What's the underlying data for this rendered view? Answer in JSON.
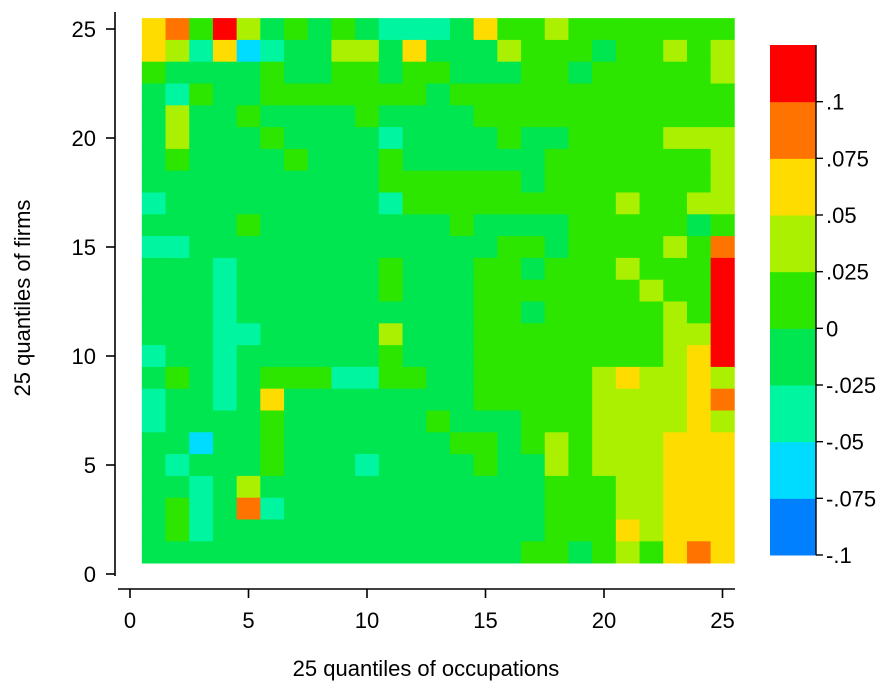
{
  "chart_data": {
    "type": "heatmap",
    "xlabel": "25 quantiles of occupations",
    "ylabel": "25 quantiles of firms",
    "xlim": [
      0,
      25
    ],
    "ylim": [
      0,
      25
    ],
    "x_ticks": [
      0,
      5,
      10,
      15,
      20,
      25
    ],
    "y_ticks": [
      0,
      5,
      10,
      15,
      20,
      25
    ],
    "grid": false,
    "colorbar": {
      "placement": "right",
      "bins": [
        {
          "from": -0.1,
          "to": -0.075,
          "color": "#0080ff"
        },
        {
          "from": -0.075,
          "to": -0.05,
          "color": "#00dcff"
        },
        {
          "from": -0.05,
          "to": -0.025,
          "color": "#00f5a0"
        },
        {
          "from": -0.025,
          "to": 0,
          "color": "#00e650"
        },
        {
          "from": 0,
          "to": 0.025,
          "color": "#2de600"
        },
        {
          "from": 0.025,
          "to": 0.05,
          "color": "#aaf000"
        },
        {
          "from": 0.05,
          "to": 0.075,
          "color": "#ffdc00"
        },
        {
          "from": 0.075,
          "to": 0.1,
          "color": "#ff7300"
        },
        {
          "from": 0.1,
          "to": 0.125,
          "color": "#ff0000"
        }
      ],
      "tick_labels": [
        {
          "value": -0.1,
          "label": "-.1"
        },
        {
          "value": -0.075,
          "label": "-.075"
        },
        {
          "value": -0.05,
          "label": "-.05"
        },
        {
          "value": -0.025,
          "label": "-.025"
        },
        {
          "value": 0,
          "label": "0"
        },
        {
          "value": 0.025,
          "label": ".025"
        },
        {
          "value": 0.05,
          "label": ".05"
        },
        {
          "value": 0.075,
          "label": ".075"
        },
        {
          "value": 0.1,
          "label": ".1"
        }
      ]
    },
    "rows_note_order": "rows listed from firm quantile 25 (top) down to 1 (bottom); each row lists occupation quantiles 1..25 as colorbar bin indices 0..8",
    "matrix_bins": [
      [
        6,
        7,
        4,
        8,
        5,
        3,
        4,
        3,
        4,
        3,
        2,
        2,
        2,
        3,
        6,
        4,
        4,
        5,
        4,
        4,
        4,
        4,
        4,
        4,
        4
      ],
      [
        6,
        5,
        2,
        6,
        1,
        2,
        3,
        3,
        5,
        5,
        3,
        6,
        3,
        3,
        3,
        5,
        4,
        4,
        4,
        3,
        4,
        4,
        5,
        4,
        5
      ],
      [
        4,
        3,
        3,
        3,
        3,
        4,
        3,
        3,
        4,
        4,
        3,
        4,
        4,
        3,
        3,
        3,
        4,
        4,
        3,
        4,
        4,
        4,
        4,
        4,
        5
      ],
      [
        3,
        2,
        4,
        3,
        3,
        4,
        4,
        4,
        4,
        4,
        4,
        4,
        3,
        4,
        4,
        4,
        4,
        4,
        4,
        4,
        4,
        4,
        4,
        4,
        4
      ],
      [
        3,
        5,
        3,
        3,
        4,
        3,
        3,
        3,
        3,
        4,
        3,
        3,
        3,
        3,
        4,
        4,
        4,
        4,
        4,
        4,
        4,
        4,
        4,
        4,
        4
      ],
      [
        3,
        5,
        3,
        3,
        3,
        4,
        3,
        3,
        3,
        3,
        2,
        3,
        3,
        3,
        3,
        4,
        3,
        3,
        4,
        4,
        4,
        4,
        5,
        5,
        5
      ],
      [
        3,
        4,
        3,
        3,
        3,
        3,
        4,
        3,
        3,
        3,
        4,
        3,
        3,
        3,
        3,
        3,
        3,
        4,
        4,
        4,
        4,
        4,
        4,
        4,
        5
      ],
      [
        3,
        3,
        3,
        3,
        3,
        3,
        3,
        3,
        3,
        3,
        4,
        4,
        4,
        4,
        4,
        4,
        3,
        4,
        4,
        4,
        4,
        4,
        4,
        4,
        5
      ],
      [
        2,
        3,
        3,
        3,
        3,
        3,
        3,
        3,
        3,
        3,
        2,
        4,
        4,
        4,
        4,
        4,
        4,
        4,
        4,
        4,
        5,
        4,
        4,
        5,
        5
      ],
      [
        3,
        3,
        3,
        3,
        4,
        3,
        3,
        3,
        3,
        3,
        3,
        3,
        3,
        4,
        3,
        3,
        3,
        3,
        4,
        4,
        4,
        4,
        4,
        3,
        4
      ],
      [
        2,
        2,
        3,
        3,
        3,
        3,
        3,
        3,
        3,
        3,
        3,
        3,
        3,
        3,
        3,
        4,
        4,
        3,
        4,
        4,
        4,
        4,
        5,
        4,
        7
      ],
      [
        3,
        3,
        3,
        2,
        3,
        3,
        3,
        3,
        3,
        3,
        4,
        3,
        3,
        3,
        4,
        4,
        3,
        4,
        4,
        4,
        5,
        4,
        4,
        4,
        8
      ],
      [
        3,
        3,
        3,
        2,
        3,
        3,
        3,
        3,
        3,
        3,
        4,
        3,
        3,
        3,
        4,
        4,
        4,
        4,
        4,
        4,
        4,
        5,
        4,
        4,
        8
      ],
      [
        3,
        3,
        3,
        2,
        3,
        3,
        3,
        3,
        3,
        3,
        3,
        3,
        3,
        3,
        4,
        4,
        3,
        4,
        4,
        4,
        4,
        4,
        5,
        4,
        8
      ],
      [
        3,
        3,
        3,
        2,
        2,
        3,
        3,
        3,
        3,
        3,
        5,
        3,
        3,
        3,
        4,
        4,
        4,
        4,
        4,
        4,
        4,
        4,
        5,
        5,
        8
      ],
      [
        2,
        3,
        3,
        2,
        3,
        3,
        3,
        3,
        3,
        3,
        4,
        3,
        3,
        3,
        4,
        4,
        4,
        4,
        4,
        4,
        4,
        4,
        5,
        6,
        8
      ],
      [
        3,
        4,
        3,
        2,
        3,
        4,
        4,
        4,
        2,
        2,
        4,
        4,
        3,
        3,
        4,
        4,
        4,
        4,
        4,
        5,
        6,
        5,
        5,
        6,
        5
      ],
      [
        2,
        3,
        3,
        2,
        3,
        6,
        3,
        3,
        3,
        3,
        3,
        3,
        3,
        3,
        4,
        4,
        4,
        4,
        4,
        5,
        5,
        5,
        5,
        6,
        7
      ],
      [
        2,
        3,
        3,
        3,
        3,
        4,
        3,
        3,
        3,
        3,
        3,
        3,
        4,
        3,
        3,
        3,
        4,
        4,
        4,
        5,
        5,
        5,
        5,
        6,
        5
      ],
      [
        3,
        3,
        1,
        3,
        3,
        4,
        3,
        3,
        3,
        3,
        3,
        3,
        3,
        4,
        4,
        3,
        4,
        5,
        4,
        5,
        5,
        5,
        6,
        6,
        6
      ],
      [
        3,
        2,
        3,
        3,
        3,
        4,
        3,
        3,
        3,
        2,
        3,
        3,
        3,
        3,
        4,
        3,
        3,
        5,
        4,
        5,
        5,
        5,
        6,
        6,
        6
      ],
      [
        3,
        3,
        2,
        3,
        5,
        3,
        3,
        3,
        3,
        3,
        3,
        3,
        3,
        3,
        3,
        3,
        3,
        4,
        4,
        4,
        5,
        5,
        6,
        6,
        6
      ],
      [
        3,
        4,
        2,
        3,
        7,
        2,
        3,
        3,
        3,
        3,
        3,
        3,
        3,
        3,
        3,
        3,
        3,
        4,
        4,
        4,
        5,
        5,
        6,
        6,
        6
      ],
      [
        3,
        4,
        2,
        3,
        3,
        3,
        3,
        3,
        3,
        3,
        3,
        3,
        3,
        3,
        3,
        3,
        3,
        4,
        4,
        4,
        6,
        5,
        6,
        6,
        6
      ],
      [
        3,
        3,
        3,
        3,
        3,
        3,
        3,
        3,
        3,
        3,
        3,
        3,
        3,
        3,
        3,
        3,
        4,
        4,
        3,
        4,
        5,
        4,
        6,
        7,
        6
      ]
    ]
  }
}
